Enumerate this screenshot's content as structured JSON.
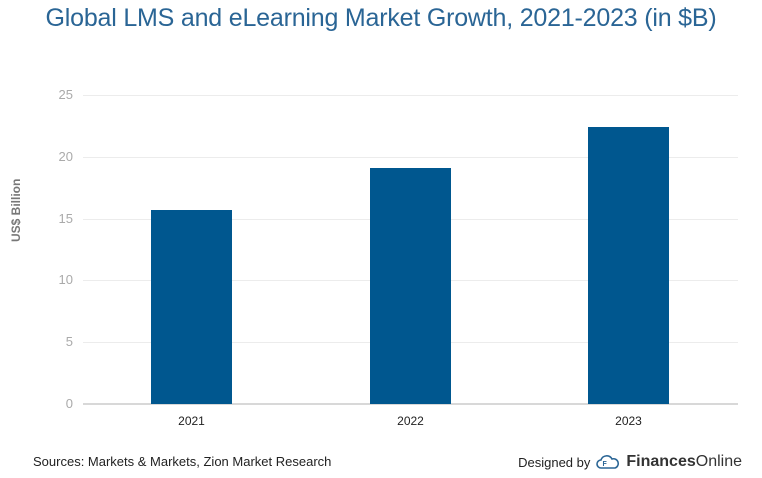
{
  "title": "Global LMS and eLearning Market Growth, 2021-2023 (in $B)",
  "ylabel": "US$ Billion",
  "yticks": [
    "25",
    "20",
    "15",
    "10",
    "5",
    "0"
  ],
  "xticks": [
    "2021",
    "2022",
    "2023"
  ],
  "footer": {
    "sources": "Sources: Markets & Markets, Zion Market Research",
    "designed_by": "Designed by",
    "brand_bold": "Finances",
    "brand_light": "Online",
    "logo_icon": "cloud-logo-icon"
  },
  "colors": {
    "bar": "#00578f",
    "title": "#2a6595"
  },
  "chart_data": {
    "type": "bar",
    "title": "Global LMS and eLearning Market Growth, 2021-2023 (in $B)",
    "categories": [
      "2021",
      "2022",
      "2023"
    ],
    "values": [
      15.7,
      19.1,
      22.4
    ],
    "xlabel": "",
    "ylabel": "US$ Billion",
    "ylim": [
      0,
      25
    ],
    "yticks": [
      0,
      5,
      10,
      15,
      20,
      25
    ],
    "grid": true,
    "legend": "none"
  }
}
